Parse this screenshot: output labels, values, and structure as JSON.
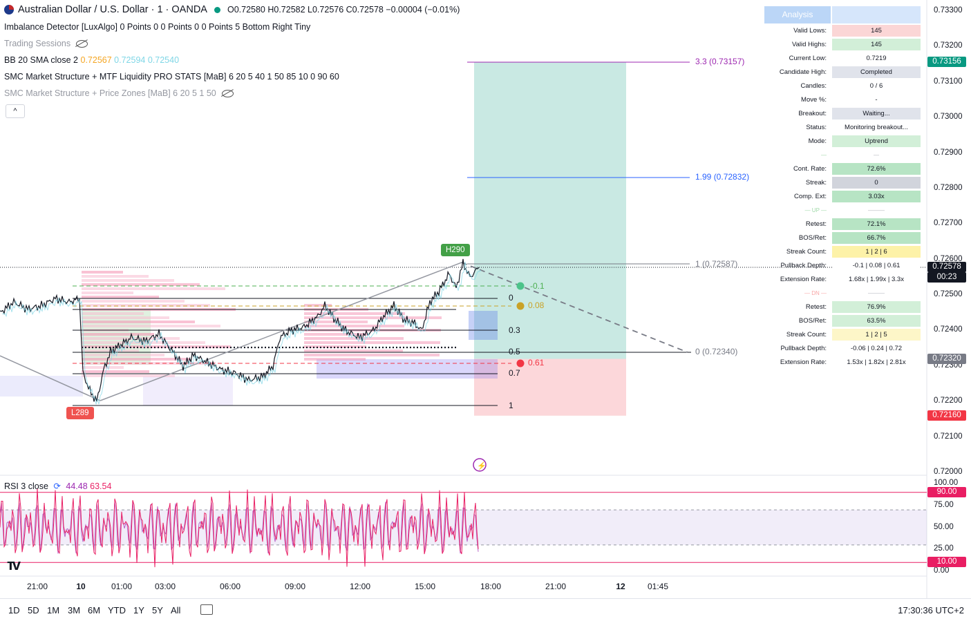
{
  "header": {
    "symbol": "Australian Dollar / U.S. Dollar · 1 · OANDA",
    "ohlc": "O0.72580 H0.72582 L0.72576 C0.72578 −0.00004 (−0.01%)"
  },
  "indicators": {
    "imbalance": "Imbalance Detector [LuxAlgo] 0 Points 0 0 Points 0 0 Points 5 Bottom Right Tiny",
    "sessions": "Trading Sessions",
    "bb_label": "BB 20 SMA close 2",
    "bb_v1": "0.72567",
    "bb_v2": "0.72594",
    "bb_v3": "0.72540",
    "smc": "SMC Market Structure + MTF Liquidity PRO STATS [MaB] 6 20 5 40 1 50 85 10 0 90 60",
    "smc_zones": "SMC Market Structure + Price Zones [MaB] 6 20 5 1 50",
    "collapse": "^"
  },
  "analysis": {
    "title": "Analysis",
    "rows": [
      {
        "label": "Valid Lows:",
        "value": "145",
        "bg": "#fbd6d6"
      },
      {
        "label": "Valid Highs:",
        "value": "145",
        "bg": "#d2efd8"
      },
      {
        "label": "Current Low:",
        "value": "0.7219",
        "bg": "#ffffff"
      },
      {
        "label": "Candidate High:",
        "value": "Completed",
        "bg": "#e0e3eb"
      },
      {
        "label": "Candles:",
        "value": "0 / 6",
        "bg": "#ffffff"
      },
      {
        "label": "Move %:",
        "value": "-",
        "bg": "#ffffff"
      },
      {
        "label": "Breakout:",
        "value": "Waiting...",
        "bg": "#e0e3eb"
      },
      {
        "label": "Status:",
        "value": "Monitoring breakout...",
        "bg": "#ffffff"
      },
      {
        "label": "Mode:",
        "value": "Uptrend",
        "bg": "#d2efd8"
      },
      {
        "label": "—",
        "value": "—",
        "bg": "#ffffff"
      },
      {
        "label": "Cont. Rate:",
        "value": "72.6%",
        "bg": "#b7e4c4"
      },
      {
        "label": "Streak:",
        "value": "0",
        "bg": "#d1d4dc"
      },
      {
        "label": "Comp. Ext:",
        "value": "3.03x",
        "bg": "#b7e4c4"
      },
      {
        "label": "— UP —",
        "value": "———",
        "bg": "#ffffff"
      },
      {
        "label": "Retest:",
        "value": "72.1%",
        "bg": "#b7e4c4"
      },
      {
        "label": "BOS/Ret:",
        "value": "66.7%",
        "bg": "#b7e4c4"
      },
      {
        "label": "Streak Count:",
        "value": "1 | 2 | 6",
        "bg": "#fdf2a8"
      },
      {
        "label": "Pullback Depth:",
        "value": "-0.1 | 0.08 | 0.61",
        "bg": "#ffffff"
      },
      {
        "label": "Extension Rate:",
        "value": "1.68x | 1.99x | 3.3x",
        "bg": "#ffffff"
      },
      {
        "label": "— DN —",
        "value": "———",
        "bg": "#ffffff"
      },
      {
        "label": "Retest:",
        "value": "76.9%",
        "bg": "#d2efd8"
      },
      {
        "label": "BOS/Ret:",
        "value": "63.5%",
        "bg": "#d2efd8"
      },
      {
        "label": "Streak Count:",
        "value": "1 | 2 | 5",
        "bg": "#fdf6c8"
      },
      {
        "label": "Pullback Depth:",
        "value": "-0.06 | 0.24 | 0.72",
        "bg": "#ffffff"
      },
      {
        "label": "Extension Rate:",
        "value": "1.53x | 1.82x | 2.81x",
        "bg": "#ffffff"
      }
    ]
  },
  "chart_data": {
    "type": "line",
    "instrument": "Australian Dollar / U.S. Dollar · 1 · OANDA",
    "ylim": [
      0.72,
      0.733
    ],
    "y_ticks": [
      "0.73300",
      "0.73200",
      "0.73100",
      "0.73000",
      "0.72900",
      "0.72800",
      "0.72700",
      "0.72600",
      "0.72500",
      "0.72400",
      "0.72300",
      "0.72200",
      "0.72100",
      "0.72000"
    ],
    "x_ticks": [
      "21:00",
      "10",
      "01:00",
      "03:00",
      "06:00",
      "09:00",
      "12:00",
      "15:00",
      "18:00",
      "21:00",
      "12",
      "01:45"
    ],
    "price_path": [
      [
        0,
        0.7245
      ],
      [
        20,
        0.7248
      ],
      [
        40,
        0.7246
      ],
      [
        60,
        0.7247
      ],
      [
        80,
        0.7249
      ],
      [
        100,
        0.7248
      ],
      [
        115,
        0.7249
      ],
      [
        120,
        0.7228
      ],
      [
        130,
        0.7223
      ],
      [
        140,
        0.722
      ],
      [
        150,
        0.7229
      ],
      [
        160,
        0.7234
      ],
      [
        175,
        0.7236
      ],
      [
        190,
        0.7238
      ],
      [
        210,
        0.7237
      ],
      [
        230,
        0.7239
      ],
      [
        250,
        0.7234
      ],
      [
        265,
        0.723
      ],
      [
        280,
        0.7233
      ],
      [
        300,
        0.7231
      ],
      [
        320,
        0.7229
      ],
      [
        340,
        0.7228
      ],
      [
        360,
        0.7226
      ],
      [
        380,
        0.7227
      ],
      [
        395,
        0.723
      ],
      [
        405,
        0.7238
      ],
      [
        420,
        0.724
      ],
      [
        440,
        0.7241
      ],
      [
        460,
        0.7244
      ],
      [
        470,
        0.7247
      ],
      [
        485,
        0.7243
      ],
      [
        500,
        0.724
      ],
      [
        520,
        0.7238
      ],
      [
        540,
        0.724
      ],
      [
        555,
        0.7244
      ],
      [
        570,
        0.7247
      ],
      [
        585,
        0.7243
      ],
      [
        600,
        0.7242
      ],
      [
        610,
        0.724
      ],
      [
        622,
        0.7248
      ],
      [
        635,
        0.7251
      ],
      [
        650,
        0.7256
      ],
      [
        660,
        0.7252
      ],
      [
        670,
        0.7259
      ],
      [
        680,
        0.7255
      ],
      [
        693,
        0.72578
      ]
    ],
    "current_price": "0.72578",
    "countdown": "00:23",
    "price_badges": [
      {
        "label": "0.73156",
        "color": "#089981"
      },
      {
        "label": "0.72578",
        "color": "#131722"
      },
      {
        "label": "0.72320",
        "color": "#787b86"
      },
      {
        "label": "0.72160",
        "color": "#f23645"
      }
    ],
    "structure_labels": [
      "H290",
      "L289"
    ],
    "fib_levels": [
      {
        "label": "3.3 (0.73157)",
        "color": "#9c27b0"
      },
      {
        "label": "1.99 (0.72832)",
        "color": "#2962ff"
      },
      {
        "label": "1 (0.72587)",
        "color": "#787b86"
      },
      {
        "label": "0 (0.72340)",
        "color": "#787b86"
      }
    ],
    "pullback_levels": [
      {
        "label": "-0.1",
        "color": "#4caf50"
      },
      {
        "label": "0",
        "color": "#131722"
      },
      {
        "label": "0.08",
        "color": "#c9a227"
      },
      {
        "label": "0.3",
        "color": "#131722"
      },
      {
        "label": "0.5",
        "color": "#131722"
      },
      {
        "label": "0.61",
        "color": "#f23645"
      },
      {
        "label": "0.7",
        "color": "#131722"
      },
      {
        "label": "1",
        "color": "#131722"
      }
    ],
    "position": {
      "entry": 0.7232,
      "target": 0.73156,
      "stop": 0.7216
    }
  },
  "rsi": {
    "label": "RSI 3 close",
    "v1": "44.48",
    "v2": "63.54",
    "ticks": [
      "100.00",
      "75.00",
      "50.00",
      "25.00",
      "0.00"
    ],
    "badges": [
      "90.00",
      "10.00"
    ],
    "ylim": [
      0,
      100
    ],
    "upper_band": 70,
    "lower_band": 30
  },
  "footer": {
    "ranges": [
      "1D",
      "5D",
      "1M",
      "3M",
      "6M",
      "YTD",
      "1Y",
      "5Y",
      "All"
    ],
    "clock": "17:30:36 UTC+2"
  },
  "colors": {
    "up": "#089981",
    "down": "#f23645",
    "rsi": "#e91e63"
  }
}
